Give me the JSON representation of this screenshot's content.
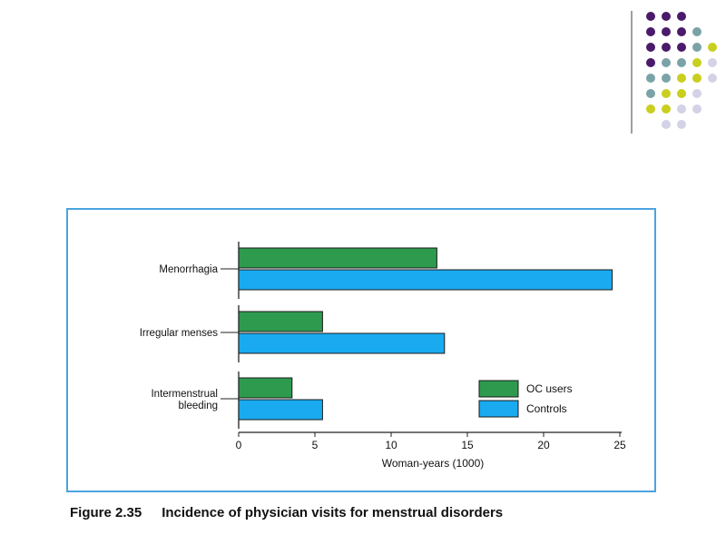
{
  "decoration": {
    "dot_colors": {
      "purple": "#4a1a6b",
      "teal": "#7aa3a7",
      "yellow": "#c9cf1e",
      "lavender": "#d4d2e6"
    },
    "dot_rows": [
      [
        "purple",
        "purple",
        "purple"
      ],
      [
        "purple",
        "purple",
        "purple",
        "teal"
      ],
      [
        "purple",
        "purple",
        "purple",
        "teal",
        "yellow"
      ],
      [
        "purple",
        "teal",
        "teal",
        "yellow",
        "lavender"
      ],
      [
        "teal",
        "teal",
        "yellow",
        "yellow",
        "lavender"
      ],
      [
        "teal",
        "yellow",
        "yellow",
        "lavender"
      ],
      [
        "yellow",
        "yellow",
        "lavender",
        "lavender"
      ],
      [
        "lavender",
        "lavender"
      ]
    ]
  },
  "figure": {
    "number": "Figure 2.35",
    "title": "Incidence of physician visits for menstrual disorders"
  },
  "chart_data": {
    "type": "bar",
    "orientation": "horizontal",
    "categories": [
      "Menorrhagia",
      "Irregular menses",
      "Intermenstrual bleeding"
    ],
    "category_label_lines": [
      [
        "Menorrhagia"
      ],
      [
        "Irregular menses"
      ],
      [
        "Intermenstrual",
        "bleeding"
      ]
    ],
    "series": [
      {
        "name": "OC users",
        "values": [
          13,
          5.5,
          3.5
        ],
        "color": "#2e9a4e"
      },
      {
        "name": "Controls",
        "values": [
          24.5,
          13.5,
          5.5
        ],
        "color": "#19aaf0"
      }
    ],
    "xlabel": "Woman-years (1000)",
    "xlim": [
      0,
      25
    ],
    "xticks": [
      "0",
      "5",
      "10",
      "15",
      "20",
      "25"
    ],
    "legend": "bottom-right",
    "grid": false
  }
}
